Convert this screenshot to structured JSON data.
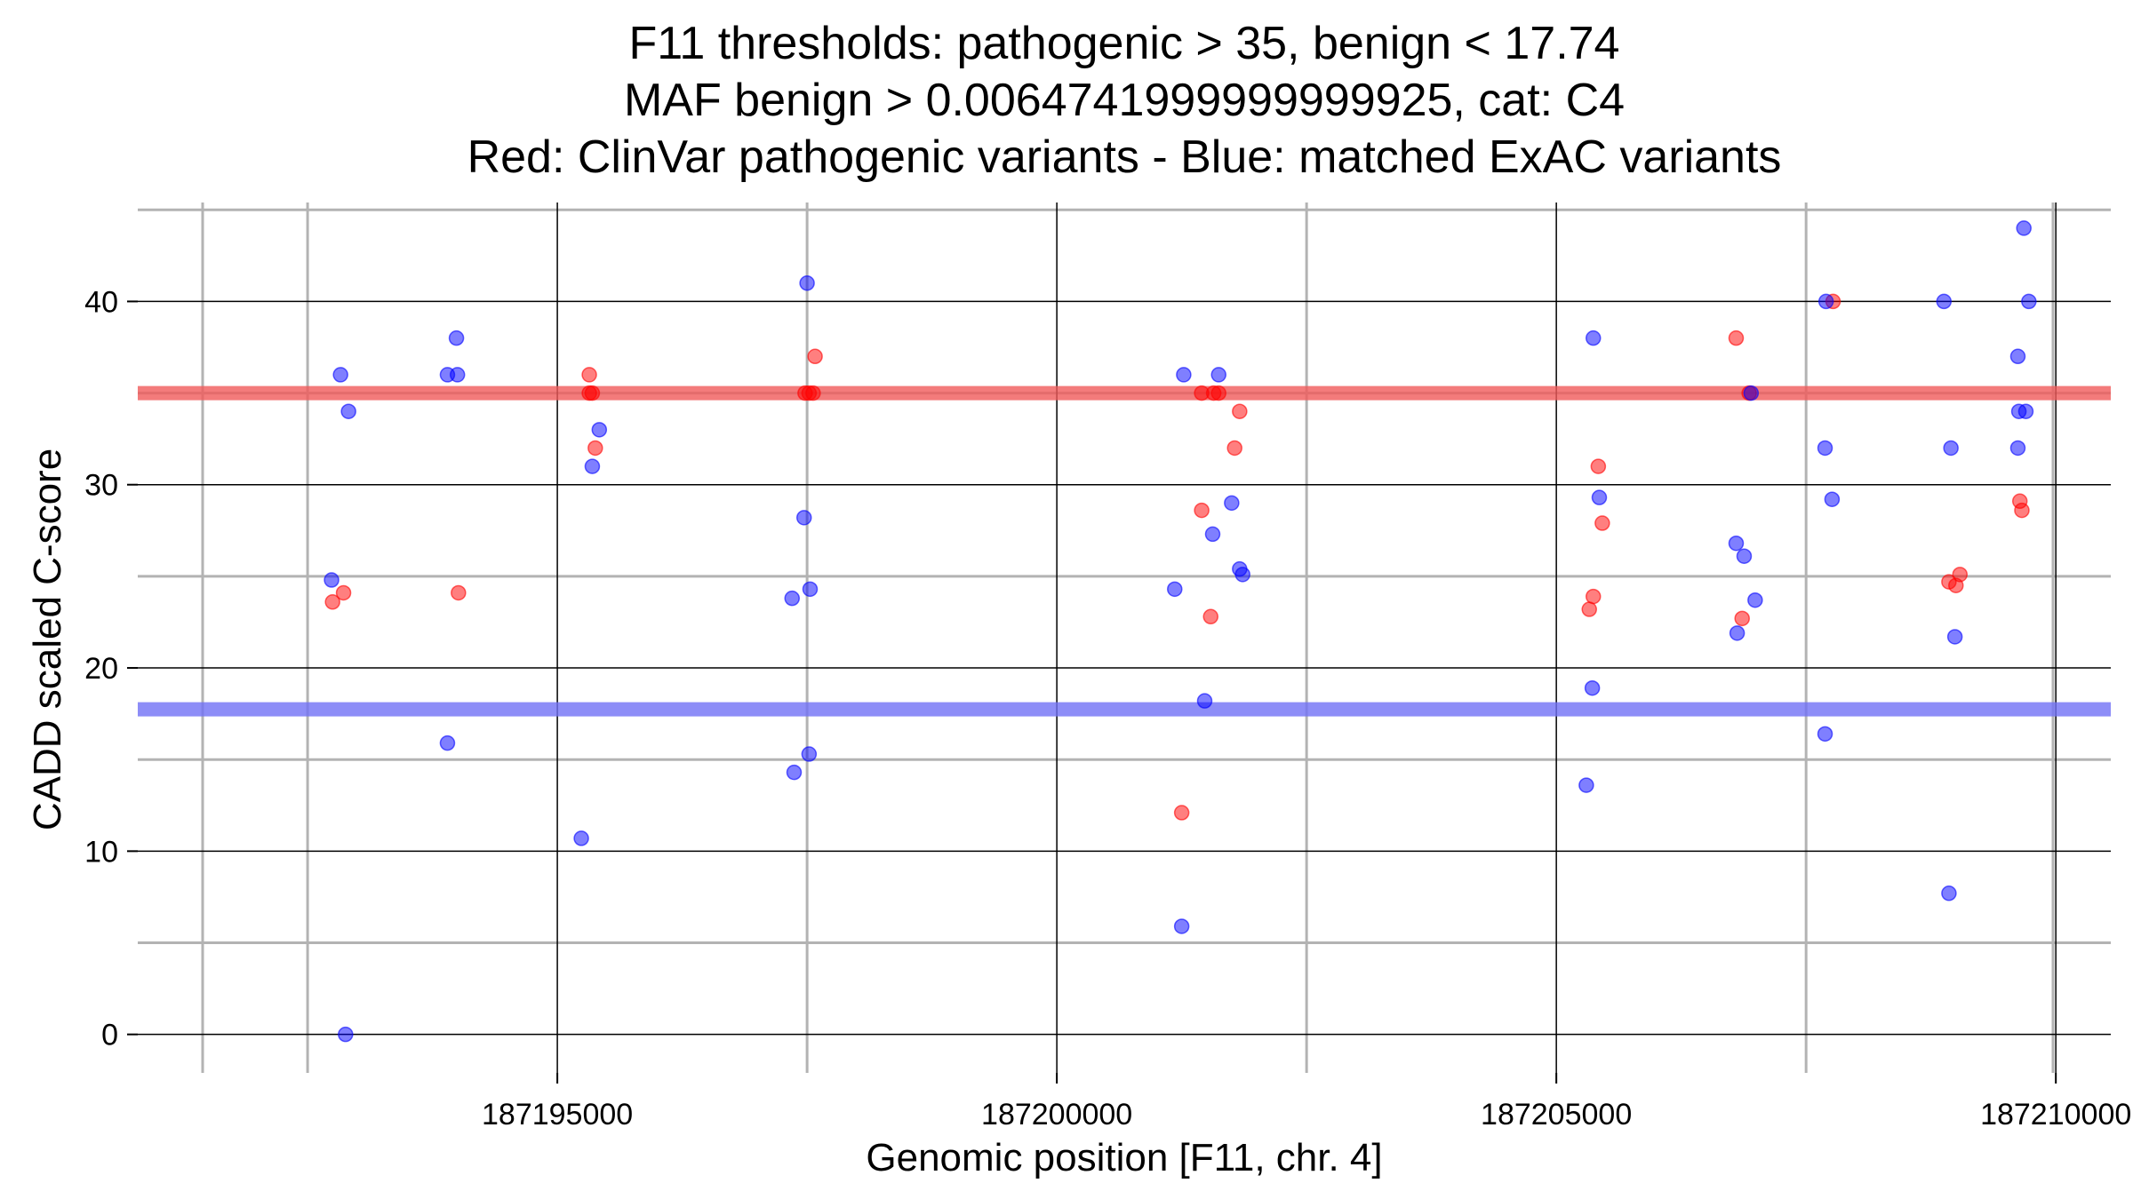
{
  "chart_data": {
    "type": "scatter",
    "title": [
      "F11 thresholds: pathogenic > 35, benign < 17.74",
      "MAF benign > 0.0064741999999999925, cat: C4",
      "Red: ClinVar pathogenic variants - Blue: matched ExAC variants"
    ],
    "xlabel": "Genomic position [F11, chr. 4]",
    "ylabel": "CADD scaled C-score",
    "xlim": [
      187190800,
      187210550
    ],
    "ylim": [
      -2.1,
      45.4
    ],
    "x_ticks": [
      187195000,
      187200000,
      187205000,
      187210000
    ],
    "x_tick_labels": [
      "187195000",
      "187200000",
      "187205000",
      "187210000"
    ],
    "y_ticks": [
      0,
      10,
      20,
      30,
      40
    ],
    "y_tick_labels": [
      "0",
      "10",
      "20",
      "30",
      "40"
    ],
    "x_minor": [
      187192500,
      187197500,
      187202500,
      187207500
    ],
    "y_minor": [
      5,
      15,
      25,
      35
    ],
    "grid": true,
    "threshold_lines": [
      {
        "name": "pathogenic",
        "value": 35,
        "color": "#f05a5a"
      },
      {
        "name": "benign",
        "value": 17.74,
        "color": "#7070f5"
      }
    ],
    "series": [
      {
        "color": "#ff0000",
        "points": [
          [
            187192750,
            23.6
          ],
          [
            187192860,
            24.1
          ],
          [
            187194010,
            24.1
          ],
          [
            187195320,
            36.0
          ],
          [
            187195320,
            35.0
          ],
          [
            187195350,
            35.0
          ],
          [
            187195380,
            32.0
          ],
          [
            187197480,
            35.0
          ],
          [
            187197520,
            35.0
          ],
          [
            187197560,
            35.0
          ],
          [
            187197580,
            37.0
          ],
          [
            187201250,
            12.1
          ],
          [
            187201450,
            28.6
          ],
          [
            187201450,
            35.0
          ],
          [
            187201540,
            22.8
          ],
          [
            187201570,
            35.0
          ],
          [
            187201620,
            35.0
          ],
          [
            187201780,
            32.0
          ],
          [
            187201830,
            34.0
          ],
          [
            187205330,
            23.2
          ],
          [
            187205370,
            23.9
          ],
          [
            187205420,
            31.0
          ],
          [
            187205460,
            27.9
          ],
          [
            187206800,
            38.0
          ],
          [
            187206860,
            22.7
          ],
          [
            187206930,
            35.0
          ],
          [
            187207770,
            40.0
          ],
          [
            187208930,
            24.7
          ],
          [
            187209000,
            24.5
          ],
          [
            187209040,
            25.1
          ],
          [
            187209640,
            29.1
          ],
          [
            187209660,
            28.6
          ]
        ]
      },
      {
        "color": "#0000ff",
        "points": [
          [
            187192740,
            24.8
          ],
          [
            187192830,
            36.0
          ],
          [
            187192880,
            0.0
          ],
          [
            187192910,
            34.0
          ],
          [
            187193900,
            15.9
          ],
          [
            187193900,
            36.0
          ],
          [
            187193990,
            38.0
          ],
          [
            187194000,
            36.0
          ],
          [
            187195240,
            10.7
          ],
          [
            187195350,
            31.0
          ],
          [
            187195420,
            33.0
          ],
          [
            187197370,
            14.3
          ],
          [
            187197350,
            23.8
          ],
          [
            187197470,
            28.2
          ],
          [
            187197500,
            41.0
          ],
          [
            187197520,
            15.3
          ],
          [
            187197530,
            24.3
          ],
          [
            187201180,
            24.3
          ],
          [
            187201250,
            5.9
          ],
          [
            187201270,
            36.0
          ],
          [
            187201480,
            18.2
          ],
          [
            187201560,
            27.3
          ],
          [
            187201620,
            36.0
          ],
          [
            187201750,
            29.0
          ],
          [
            187201830,
            25.4
          ],
          [
            187201860,
            25.1
          ],
          [
            187205300,
            13.6
          ],
          [
            187205360,
            18.9
          ],
          [
            187205370,
            38.0
          ],
          [
            187205430,
            29.3
          ],
          [
            187206810,
            21.9
          ],
          [
            187206800,
            26.8
          ],
          [
            187206880,
            26.1
          ],
          [
            187206950,
            35.0
          ],
          [
            187206990,
            23.7
          ],
          [
            187207690,
            32.0
          ],
          [
            187207690,
            16.4
          ],
          [
            187207700,
            40.0
          ],
          [
            187207760,
            29.2
          ],
          [
            187208880,
            40.0
          ],
          [
            187208930,
            7.7
          ],
          [
            187208950,
            32.0
          ],
          [
            187208990,
            21.7
          ],
          [
            187209620,
            37.0
          ],
          [
            187209620,
            32.0
          ],
          [
            187209630,
            34.0
          ],
          [
            187209680,
            44.0
          ],
          [
            187209700,
            34.0
          ],
          [
            187209730,
            40.0
          ]
        ]
      }
    ]
  }
}
